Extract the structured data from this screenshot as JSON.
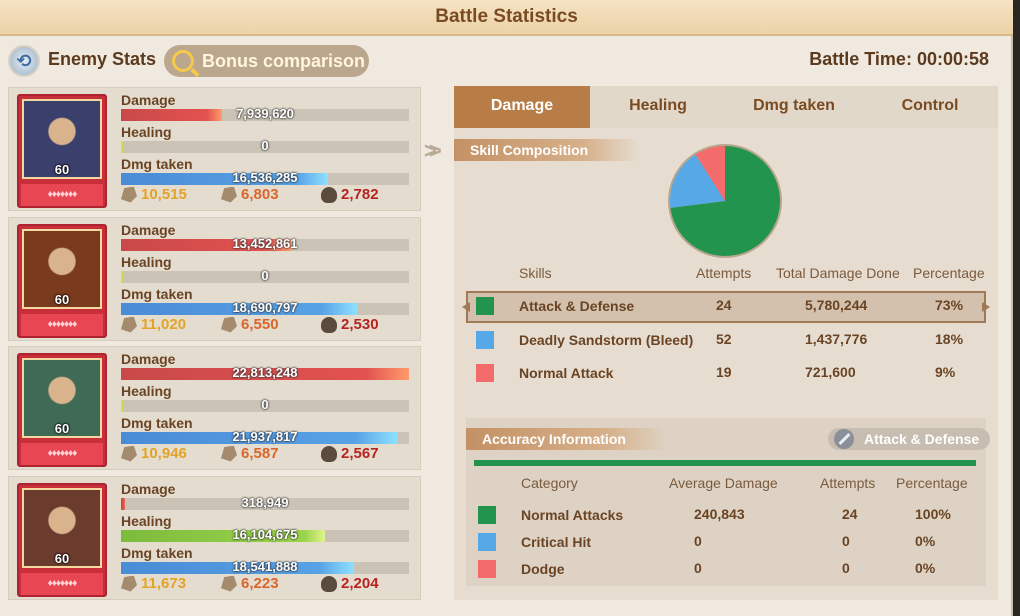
{
  "title": "Battle Statistics",
  "header": {
    "enemy_stats_label": "Enemy Stats",
    "bonus_comparison_label": "Bonus comparison",
    "battle_time": "Battle Time: 00:00:58"
  },
  "heroes": [
    {
      "level": "60",
      "damage_label": "Damage",
      "damage": "7,939,620",
      "damage_fill": 0.35,
      "healing_label": "Healing",
      "healing": "0",
      "healing_fill": 0,
      "taken_label": "Dmg taken",
      "taken": "16,536,285",
      "taken_fill": 0.72,
      "c1": "10,515",
      "c2": "6,803",
      "c3": "2,782",
      "color": "#3b3f6b"
    },
    {
      "level": "60",
      "damage_label": "Damage",
      "damage": "13,452,861",
      "damage_fill": 0.59,
      "healing_label": "Healing",
      "healing": "0",
      "healing_fill": 0,
      "taken_label": "Dmg taken",
      "taken": "18,690,797",
      "taken_fill": 0.82,
      "c1": "11,020",
      "c2": "6,550",
      "c3": "2,530",
      "color": "#7a3a1e"
    },
    {
      "level": "60",
      "damage_label": "Damage",
      "damage": "22,813,248",
      "damage_fill": 1.0,
      "healing_label": "Healing",
      "healing": "0",
      "healing_fill": 0,
      "taken_label": "Dmg taken",
      "taken": "21,937,817",
      "taken_fill": 0.96,
      "c1": "10,946",
      "c2": "6,587",
      "c3": "2,567",
      "color": "#3f6a55"
    },
    {
      "level": "60",
      "damage_label": "Damage",
      "damage": "318,949",
      "damage_fill": 0.014,
      "healing_label": "Healing",
      "healing": "16,104,675",
      "healing_fill": 0.71,
      "taken_label": "Dmg taken",
      "taken": "18,541,888",
      "taken_fill": 0.81,
      "c1": "11,673",
      "c2": "6,223",
      "c3": "2,204",
      "color": "#6b3c2e"
    }
  ],
  "tabs": [
    "Damage",
    "Healing",
    "Dmg taken",
    "Control"
  ],
  "skill_composition": {
    "title": "Skill Composition",
    "columns": [
      "Skills",
      "Attempts",
      "Total Damage Done",
      "Percentage"
    ],
    "rows": [
      {
        "name": "Attack & Defense",
        "attempts": "24",
        "total": "5,780,244",
        "pct": "73%",
        "color": "#23944d",
        "share": 0.73
      },
      {
        "name": "Deadly Sandstorm (Bleed)",
        "attempts": "52",
        "total": "1,437,776",
        "pct": "18%",
        "color": "#57a8e6",
        "share": 0.18
      },
      {
        "name": "Normal Attack",
        "attempts": "19",
        "total": "721,600",
        "pct": "9%",
        "color": "#f36b6b",
        "share": 0.09
      }
    ]
  },
  "accuracy": {
    "title": "Accuracy Information",
    "button": "Attack & Defense",
    "columns": [
      "Category",
      "Average Damage",
      "Attempts",
      "Percentage"
    ],
    "rows": [
      {
        "name": "Normal Attacks",
        "avg": "240,843",
        "attempts": "24",
        "pct": "100%",
        "color": "#23944d"
      },
      {
        "name": "Critical Hit",
        "avg": "0",
        "attempts": "0",
        "pct": "0%",
        "color": "#57a8e6"
      },
      {
        "name": "Dodge",
        "avg": "0",
        "attempts": "0",
        "pct": "0%",
        "color": "#f36b6b"
      }
    ]
  }
}
